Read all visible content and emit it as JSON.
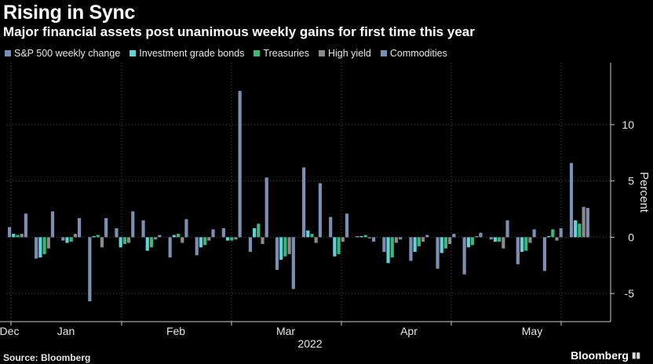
{
  "title": "Rising in Sync",
  "subtitle": "Major financial assets post unanimous weekly gains for first time this year",
  "source": "Source: Bloomberg",
  "brand": "Bloomberg",
  "chart_data": {
    "type": "bar",
    "title": "Rising in Sync",
    "subtitle": "Major financial assets post unanimous weekly gains for first time this year",
    "xlabel": "2022",
    "ylabel": "Percent",
    "ylim": [
      -7.5,
      15.5
    ],
    "yticks": [
      -5,
      0,
      5,
      10
    ],
    "grid": true,
    "legend_position": "top-left",
    "x_tick_labels": [
      "Dec",
      "Jan",
      "Feb",
      "Mar",
      "Apr",
      "May"
    ],
    "categories": [
      "2021-12-31",
      "2022-01-07",
      "2022-01-14",
      "2022-01-21",
      "2022-01-28",
      "2022-02-04",
      "2022-02-11",
      "2022-02-18",
      "2022-02-25",
      "2022-03-04",
      "2022-03-11",
      "2022-03-18",
      "2022-03-25",
      "2022-04-01",
      "2022-04-08",
      "2022-04-14",
      "2022-04-22",
      "2022-04-29",
      "2022-05-06",
      "2022-05-13",
      "2022-05-20",
      "2022-05-27"
    ],
    "series": [
      {
        "name": "S&P 500 weekly change",
        "color": "#7b8fb5",
        "values": [
          0.9,
          -1.9,
          -0.3,
          -5.7,
          0.8,
          1.5,
          -1.8,
          -1.6,
          0.8,
          -1.3,
          -2.9,
          6.2,
          1.8,
          0.1,
          -1.3,
          -2.1,
          -2.8,
          -3.3,
          -0.2,
          -2.4,
          -3.0,
          6.6
        ]
      },
      {
        "name": "Investment grade bonds",
        "color": "#5fd3d6",
        "values": [
          0.3,
          -1.8,
          -0.5,
          0.1,
          -0.9,
          -1.2,
          0.2,
          -0.9,
          -0.3,
          0.8,
          -2.0,
          0.6,
          -1.7,
          0.1,
          -2.3,
          -1.3,
          -1.4,
          -0.9,
          -0.4,
          -1.3,
          0.1,
          1.5
        ]
      },
      {
        "name": "Treasuries",
        "color": "#3fb57a",
        "values": [
          0.2,
          -1.5,
          -0.4,
          0.2,
          -0.6,
          -0.9,
          0.3,
          -0.7,
          -0.3,
          1.2,
          -1.7,
          0.3,
          -1.5,
          0.2,
          -1.8,
          -0.8,
          -1.0,
          -0.7,
          -0.4,
          -1.2,
          0.7,
          1.2
        ]
      },
      {
        "name": "High yield",
        "color": "#8a8a8a",
        "values": [
          0.3,
          -1.0,
          0.3,
          -0.9,
          -0.5,
          -0.2,
          -0.5,
          -0.3,
          -0.2,
          -0.6,
          -1.5,
          -0.5,
          -0.4,
          -0.1,
          -0.5,
          -0.4,
          -0.6,
          0.1,
          -1.0,
          -0.5,
          -0.3,
          2.7
        ]
      },
      {
        "name": "Commodities",
        "color": "#7b8fb5",
        "values": [
          2.1,
          2.3,
          1.7,
          1.7,
          2.3,
          0.2,
          1.6,
          0.7,
          13.0,
          5.3,
          -4.6,
          4.8,
          2.1,
          -0.4,
          -0.2,
          0.2,
          0.3,
          0.4,
          1.5,
          0.7,
          0.8,
          2.6
        ]
      }
    ]
  }
}
